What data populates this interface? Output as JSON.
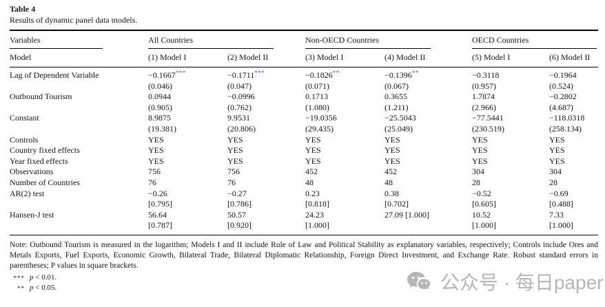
{
  "title": "Table 4",
  "caption": "Results of dynamic panel data models.",
  "header": {
    "variables_label": "Variables",
    "model_label": "Model",
    "groups": [
      {
        "label": "All Countries"
      },
      {
        "label": "Non-OECD Countries"
      },
      {
        "label": "OECD Countries"
      }
    ],
    "model_cols": [
      "(1) Model I",
      "(2) Model II",
      "(3) Model I",
      "(4) Model II",
      "(5) Model I",
      "(6) Model II"
    ]
  },
  "rows": [
    {
      "label": "Lag of Dependent Variable",
      "cells": [
        {
          "v": "−0.1667",
          "s": "***"
        },
        {
          "v": "−0.1711",
          "s": "***"
        },
        {
          "v": "−0.1826",
          "s": "**"
        },
        {
          "v": "−0.1396",
          "s": "**"
        },
        {
          "v": "−0.3118"
        },
        {
          "v": "−0.1964"
        }
      ],
      "sub": [
        "(0.046)",
        "(0.047)",
        "(0.071)",
        "(0.067)",
        "(0.957)",
        "(0.524)"
      ]
    },
    {
      "label": "Outbound Tourism",
      "cells": [
        {
          "v": "0.0944"
        },
        {
          "v": "−0.0996"
        },
        {
          "v": "0.1713"
        },
        {
          "v": "0.3655"
        },
        {
          "v": "1.7874"
        },
        {
          "v": "−0.2802"
        }
      ],
      "sub": [
        "(0.905)",
        "(0.762)",
        "(1.080)",
        "(1.211)",
        "(2.966)",
        "(4.687)"
      ]
    },
    {
      "label": "Constant",
      "cells": [
        {
          "v": "8.9875"
        },
        {
          "v": "9.9531"
        },
        {
          "v": "−19.0356"
        },
        {
          "v": "−25.5043"
        },
        {
          "v": "−77.5441"
        },
        {
          "v": "−118.0318"
        }
      ],
      "sub": [
        "(19.381)",
        "(20.806)",
        "(29.435)",
        "(25.049)",
        "(230.519)",
        "(258.134)"
      ]
    },
    {
      "label": "Controls",
      "cells": [
        {
          "v": "YES"
        },
        {
          "v": "YES"
        },
        {
          "v": "YES"
        },
        {
          "v": "YES"
        },
        {
          "v": "YES"
        },
        {
          "v": "YES"
        }
      ]
    },
    {
      "label": "Country fixed effects",
      "cells": [
        {
          "v": "YES"
        },
        {
          "v": "YES"
        },
        {
          "v": "YES"
        },
        {
          "v": "YES"
        },
        {
          "v": "YES"
        },
        {
          "v": "YES"
        }
      ]
    },
    {
      "label": "Year fixed effects",
      "cells": [
        {
          "v": "YES"
        },
        {
          "v": "YES"
        },
        {
          "v": "YES"
        },
        {
          "v": "YES"
        },
        {
          "v": "YES"
        },
        {
          "v": "YES"
        }
      ]
    },
    {
      "label": "Observations",
      "cells": [
        {
          "v": "756"
        },
        {
          "v": "756"
        },
        {
          "v": "452"
        },
        {
          "v": "452"
        },
        {
          "v": "304"
        },
        {
          "v": "304"
        }
      ]
    },
    {
      "label": "Number of Countries",
      "cells": [
        {
          "v": "76"
        },
        {
          "v": "76"
        },
        {
          "v": "48"
        },
        {
          "v": "48"
        },
        {
          "v": "28"
        },
        {
          "v": "28"
        }
      ]
    },
    {
      "label": "AR(2) test",
      "cells": [
        {
          "v": "−0.26"
        },
        {
          "v": "−0.27"
        },
        {
          "v": "0.23"
        },
        {
          "v": "0.38"
        },
        {
          "v": "−0.52"
        },
        {
          "v": "−0.69"
        }
      ],
      "sub": [
        "[0.795]",
        "[0.786]",
        "[0.818]",
        "[0.702]",
        "[0.605]",
        "[0.488]"
      ]
    },
    {
      "label": "Hansen-J test",
      "cells": [
        {
          "v": "56.64"
        },
        {
          "v": "50.57"
        },
        {
          "v": "24.23"
        },
        {
          "v": "27.09 [1.000]"
        },
        {
          "v": "10.52"
        },
        {
          "v": "7.33"
        }
      ],
      "sub": [
        "[0.787]",
        "[0.920]",
        "[1.000]",
        "",
        "[1.000]",
        "[1.000]"
      ]
    }
  ],
  "note": "Note: Outbound Tourism is measured in the logarithm; Models I and II include Rule of Law and Political Stability as explanatory variables, respectively; Controls include Ores and Metals Exports, Fuel Exports, Economic Growth, Bilateral Trade, Bilateral Diplomatic Relationship, Foreign Direct Investment, and Exchange Rate. Robust standard errors in parentheses; P values in square brackets.",
  "footnotes": [
    {
      "symbol": "***",
      "var": "p",
      "rest": " < 0.01."
    },
    {
      "symbol": "**",
      "var": "p",
      "rest": " < 0.05."
    }
  ],
  "watermark": {
    "icon": "wechat-icon",
    "text": "公众号 · 每日paper"
  },
  "colors": {
    "star": "#4150bf",
    "watermark": "#b6b6b6",
    "rule": "#000000",
    "text": "#141414"
  }
}
